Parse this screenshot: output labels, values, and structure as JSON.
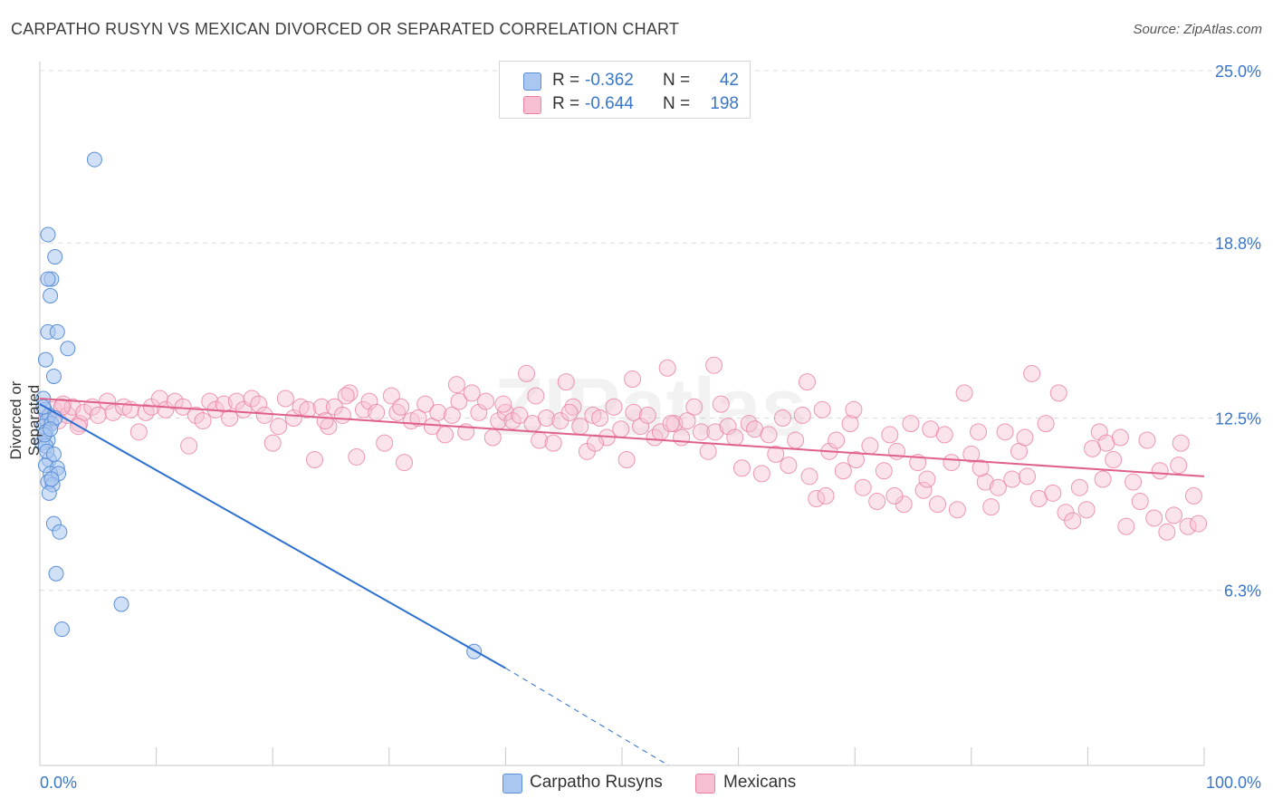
{
  "title": "CARPATHO RUSYN VS MEXICAN DIVORCED OR SEPARATED CORRELATION CHART",
  "source": "Source: ZipAtlas.com",
  "watermark": "ZIPatlas",
  "colors": {
    "blue": "#5b8fd6",
    "blue_fill": "#a9c7f0",
    "blue_line": "#2b6fd0",
    "pink": "#e97fa3",
    "pink_fill": "#f6c0d2",
    "pink_line": "#e0608c",
    "grid": "#dcdcdc",
    "axis_text": "#3a76c8"
  },
  "legend": {
    "rows": [
      {
        "r_label": "R =",
        "r_value": "-0.362",
        "n_label": "N =",
        "n_value": "42"
      },
      {
        "r_label": "R =",
        "r_value": "-0.644",
        "n_label": "N =",
        "n_value": "198"
      }
    ],
    "bottom": [
      "Carpatho Rusyns",
      "Mexicans"
    ]
  },
  "chart_data": {
    "type": "scatter",
    "title": "CARPATHO RUSYN VS MEXICAN DIVORCED OR SEPARATED CORRELATION CHART",
    "xlabel": "",
    "ylabel": "Divorced or Separated",
    "xlim": [
      0,
      100
    ],
    "ylim": [
      0,
      25
    ],
    "x_tick_labels": [
      "0.0%",
      "100.0%"
    ],
    "y_ticks": [
      6.3,
      12.5,
      18.8,
      25.0
    ],
    "y_tick_labels": [
      "6.3%",
      "12.5%",
      "18.8%",
      "25.0%"
    ],
    "grid": true,
    "legend_position": "top-center",
    "series": [
      {
        "name": "Carpatho Rusyns",
        "color": "#5b8fd6",
        "trend": {
          "x": [
            0,
            40
          ],
          "y": [
            13.0,
            3.5
          ],
          "dashed_to": [
            54,
            0
          ]
        },
        "points": [
          [
            4.7,
            21.8
          ],
          [
            0.7,
            19.1
          ],
          [
            1.3,
            18.3
          ],
          [
            1.0,
            17.5
          ],
          [
            0.7,
            17.5
          ],
          [
            0.9,
            16.9
          ],
          [
            0.7,
            15.6
          ],
          [
            1.5,
            15.6
          ],
          [
            2.4,
            15.0
          ],
          [
            0.5,
            14.6
          ],
          [
            1.2,
            14.0
          ],
          [
            0.3,
            13.2
          ],
          [
            0.4,
            12.8
          ],
          [
            0.8,
            12.6
          ],
          [
            0.6,
            12.4
          ],
          [
            0.3,
            12.2
          ],
          [
            1.0,
            12.3
          ],
          [
            1.3,
            12.5
          ],
          [
            0.5,
            12.0
          ],
          [
            0.7,
            11.7
          ],
          [
            0.2,
            11.6
          ],
          [
            0.5,
            11.5
          ],
          [
            0.8,
            11.0
          ],
          [
            0.5,
            10.8
          ],
          [
            1.5,
            10.7
          ],
          [
            0.9,
            10.5
          ],
          [
            1.6,
            10.5
          ],
          [
            0.7,
            10.2
          ],
          [
            1.1,
            10.1
          ],
          [
            0.8,
            9.8
          ],
          [
            1.2,
            8.7
          ],
          [
            1.7,
            8.4
          ],
          [
            1.4,
            6.9
          ],
          [
            7.0,
            5.8
          ],
          [
            1.9,
            4.9
          ],
          [
            37.3,
            4.1
          ],
          [
            0.3,
            12.9
          ],
          [
            0.6,
            11.3
          ],
          [
            1.0,
            10.3
          ],
          [
            0.4,
            11.9
          ],
          [
            1.2,
            11.2
          ],
          [
            0.9,
            12.1
          ]
        ]
      },
      {
        "name": "Mexicans",
        "color": "#e97fa3",
        "trend": {
          "x": [
            0,
            100
          ],
          "y": [
            13.2,
            10.4
          ]
        },
        "points": [
          [
            0.6,
            12.5
          ],
          [
            1.2,
            12.8
          ],
          [
            1.6,
            12.4
          ],
          [
            2.0,
            13.0
          ],
          [
            2.4,
            12.6
          ],
          [
            2.8,
            12.9
          ],
          [
            3.4,
            12.3
          ],
          [
            3.8,
            12.7
          ],
          [
            4.5,
            12.9
          ],
          [
            5.0,
            12.6
          ],
          [
            5.8,
            13.1
          ],
          [
            6.3,
            12.7
          ],
          [
            7.2,
            12.9
          ],
          [
            7.8,
            12.8
          ],
          [
            8.5,
            12.0
          ],
          [
            9.1,
            12.7
          ],
          [
            9.6,
            12.9
          ],
          [
            10.3,
            13.2
          ],
          [
            10.8,
            12.8
          ],
          [
            11.6,
            13.1
          ],
          [
            12.3,
            12.9
          ],
          [
            12.8,
            11.5
          ],
          [
            13.4,
            12.6
          ],
          [
            14.0,
            12.4
          ],
          [
            14.6,
            13.1
          ],
          [
            15.1,
            12.8
          ],
          [
            15.8,
            13.0
          ],
          [
            16.3,
            12.5
          ],
          [
            16.9,
            13.1
          ],
          [
            17.5,
            12.8
          ],
          [
            18.2,
            13.2
          ],
          [
            18.8,
            13.0
          ],
          [
            19.3,
            12.6
          ],
          [
            20.0,
            11.6
          ],
          [
            20.5,
            12.2
          ],
          [
            21.1,
            13.2
          ],
          [
            21.8,
            12.5
          ],
          [
            22.4,
            12.9
          ],
          [
            23.0,
            12.8
          ],
          [
            23.6,
            11.0
          ],
          [
            24.2,
            12.9
          ],
          [
            24.8,
            12.2
          ],
          [
            25.3,
            12.9
          ],
          [
            26.0,
            12.6
          ],
          [
            26.6,
            13.4
          ],
          [
            27.2,
            11.1
          ],
          [
            27.8,
            12.8
          ],
          [
            28.3,
            13.1
          ],
          [
            28.9,
            12.7
          ],
          [
            29.6,
            11.6
          ],
          [
            30.2,
            13.3
          ],
          [
            30.7,
            12.7
          ],
          [
            31.3,
            10.9
          ],
          [
            31.9,
            12.4
          ],
          [
            32.5,
            12.5
          ],
          [
            33.1,
            13.0
          ],
          [
            33.7,
            12.2
          ],
          [
            34.2,
            12.7
          ],
          [
            34.8,
            11.9
          ],
          [
            35.4,
            12.6
          ],
          [
            36.0,
            13.1
          ],
          [
            36.6,
            12.0
          ],
          [
            37.1,
            13.4
          ],
          [
            37.7,
            12.7
          ],
          [
            38.3,
            13.1
          ],
          [
            38.9,
            11.8
          ],
          [
            39.4,
            12.4
          ],
          [
            40.0,
            12.7
          ],
          [
            40.6,
            12.4
          ],
          [
            41.2,
            12.6
          ],
          [
            41.8,
            14.1
          ],
          [
            42.3,
            12.3
          ],
          [
            42.9,
            11.7
          ],
          [
            43.5,
            12.5
          ],
          [
            44.1,
            11.6
          ],
          [
            44.7,
            12.4
          ],
          [
            45.2,
            13.8
          ],
          [
            45.8,
            12.9
          ],
          [
            46.4,
            12.2
          ],
          [
            47.0,
            11.3
          ],
          [
            47.5,
            12.6
          ],
          [
            48.1,
            12.5
          ],
          [
            48.7,
            11.8
          ],
          [
            49.3,
            12.9
          ],
          [
            49.9,
            12.1
          ],
          [
            50.4,
            11.0
          ],
          [
            51.0,
            12.7
          ],
          [
            51.6,
            12.2
          ],
          [
            52.2,
            12.6
          ],
          [
            52.8,
            11.8
          ],
          [
            53.3,
            12.0
          ],
          [
            53.9,
            14.3
          ],
          [
            54.5,
            12.3
          ],
          [
            55.1,
            11.8
          ],
          [
            55.6,
            12.4
          ],
          [
            56.2,
            12.9
          ],
          [
            56.8,
            12.0
          ],
          [
            57.4,
            11.3
          ],
          [
            58.0,
            12.0
          ],
          [
            58.5,
            13.0
          ],
          [
            59.1,
            12.2
          ],
          [
            59.7,
            11.8
          ],
          [
            60.3,
            10.7
          ],
          [
            60.9,
            12.3
          ],
          [
            61.4,
            12.1
          ],
          [
            62.0,
            10.5
          ],
          [
            62.6,
            11.9
          ],
          [
            63.2,
            11.2
          ],
          [
            63.8,
            12.5
          ],
          [
            64.3,
            10.8
          ],
          [
            64.9,
            11.7
          ],
          [
            65.5,
            12.6
          ],
          [
            66.1,
            10.4
          ],
          [
            66.7,
            9.6
          ],
          [
            67.2,
            12.8
          ],
          [
            67.8,
            11.3
          ],
          [
            68.4,
            11.7
          ],
          [
            69.0,
            10.6
          ],
          [
            69.6,
            12.3
          ],
          [
            70.1,
            11.0
          ],
          [
            70.7,
            10.0
          ],
          [
            71.3,
            11.5
          ],
          [
            71.9,
            9.5
          ],
          [
            72.5,
            10.6
          ],
          [
            73.0,
            11.9
          ],
          [
            73.6,
            11.3
          ],
          [
            74.2,
            9.4
          ],
          [
            74.8,
            12.3
          ],
          [
            75.4,
            10.9
          ],
          [
            75.9,
            9.9
          ],
          [
            76.5,
            12.1
          ],
          [
            77.1,
            9.4
          ],
          [
            77.7,
            11.9
          ],
          [
            78.3,
            10.9
          ],
          [
            78.8,
            9.2
          ],
          [
            79.4,
            13.4
          ],
          [
            80.0,
            11.2
          ],
          [
            80.6,
            12.0
          ],
          [
            81.2,
            10.2
          ],
          [
            81.7,
            9.3
          ],
          [
            82.3,
            10.0
          ],
          [
            82.9,
            12.0
          ],
          [
            83.5,
            10.3
          ],
          [
            84.1,
            11.3
          ],
          [
            84.6,
            11.8
          ],
          [
            85.2,
            14.1
          ],
          [
            85.8,
            9.6
          ],
          [
            86.4,
            12.3
          ],
          [
            87.0,
            9.8
          ],
          [
            87.5,
            13.4
          ],
          [
            88.1,
            9.1
          ],
          [
            88.7,
            8.8
          ],
          [
            89.3,
            10.0
          ],
          [
            89.9,
            9.2
          ],
          [
            90.4,
            11.4
          ],
          [
            91.0,
            12.0
          ],
          [
            91.6,
            11.6
          ],
          [
            92.2,
            11.0
          ],
          [
            92.8,
            11.8
          ],
          [
            93.3,
            8.6
          ],
          [
            93.9,
            10.2
          ],
          [
            94.5,
            9.5
          ],
          [
            95.1,
            11.7
          ],
          [
            95.7,
            8.9
          ],
          [
            96.2,
            10.6
          ],
          [
            96.8,
            8.4
          ],
          [
            97.4,
            9.0
          ],
          [
            98.0,
            11.6
          ],
          [
            98.6,
            8.6
          ],
          [
            99.1,
            9.7
          ],
          [
            99.5,
            8.7
          ],
          [
            84.8,
            10.4
          ],
          [
            80.8,
            10.7
          ],
          [
            69.9,
            12.8
          ],
          [
            65.9,
            13.8
          ],
          [
            57.9,
            14.4
          ],
          [
            54.2,
            12.3
          ],
          [
            42.6,
            13.3
          ],
          [
            24.5,
            12.4
          ],
          [
            3.3,
            12.2
          ],
          [
            1.9,
            12.9
          ],
          [
            50.9,
            13.9
          ],
          [
            35.8,
            13.7
          ],
          [
            45.5,
            12.7
          ],
          [
            47.7,
            11.6
          ],
          [
            39.8,
            13.0
          ],
          [
            31.0,
            12.9
          ],
          [
            26.3,
            13.3
          ],
          [
            67.5,
            9.7
          ],
          [
            76.2,
            10.3
          ],
          [
            91.3,
            10.3
          ],
          [
            97.8,
            10.8
          ],
          [
            73.4,
            9.7
          ]
        ]
      }
    ]
  }
}
